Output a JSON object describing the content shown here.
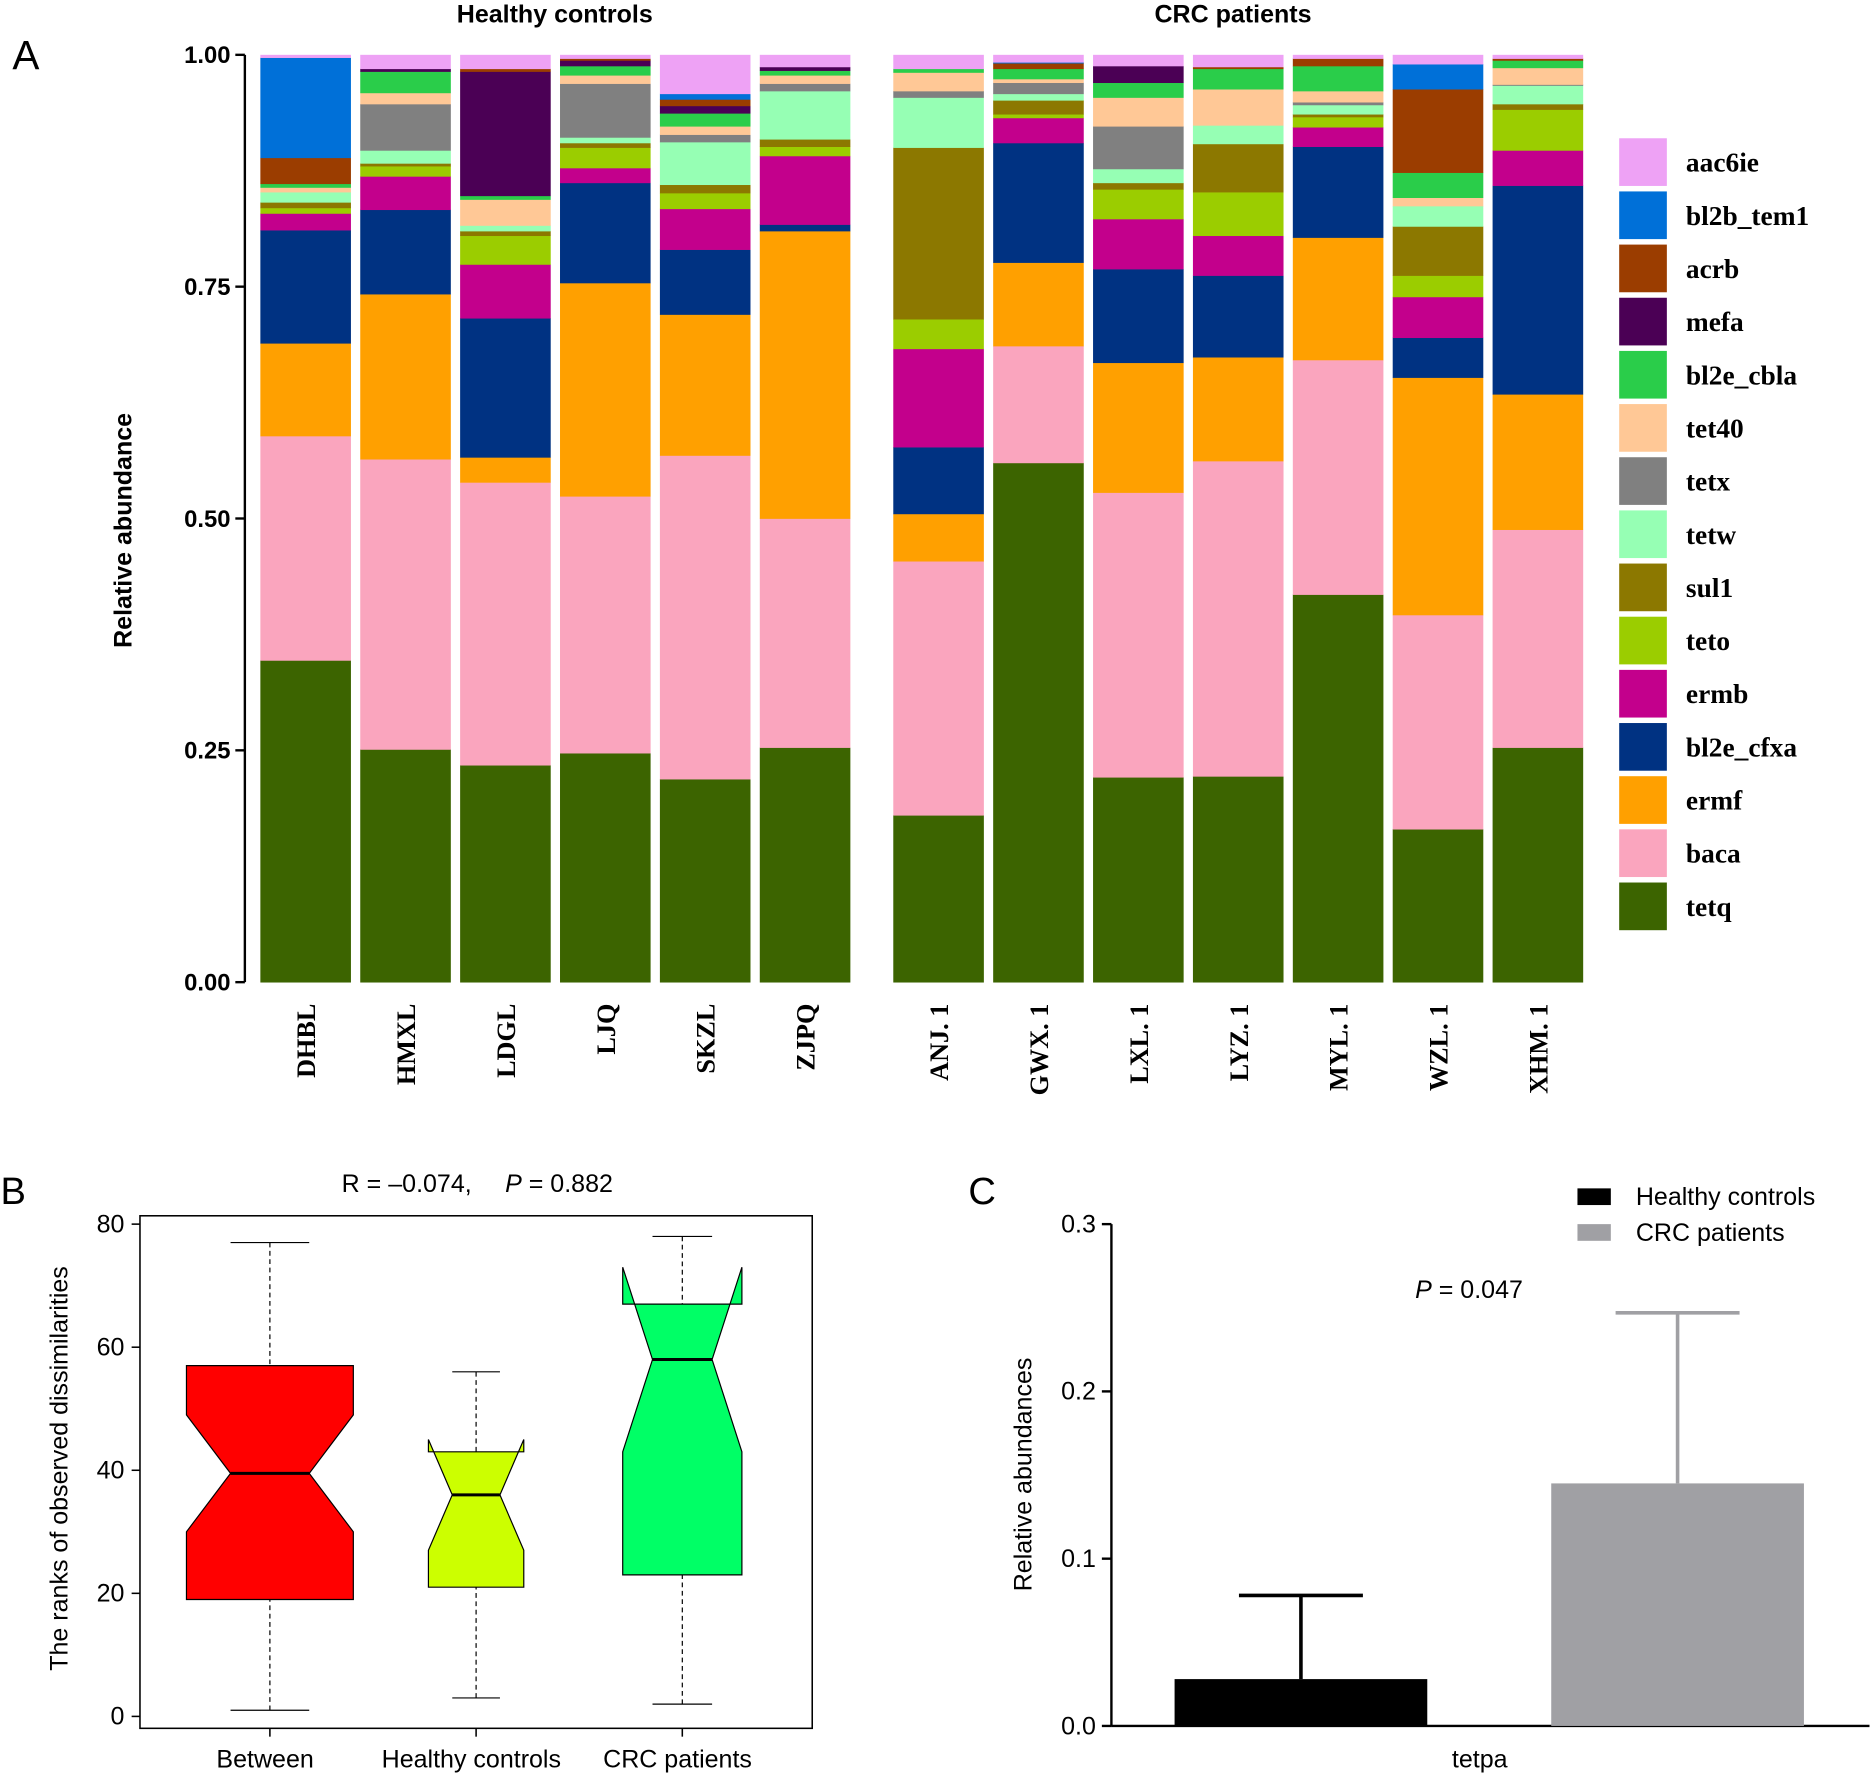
{
  "chart_data": [
    {
      "panel": "A",
      "type": "bar",
      "stacked": true,
      "group_titles": [
        "Healthy controls",
        "CRC patients"
      ],
      "ylabel": "Relative abundance",
      "ylim": [
        0,
        1
      ],
      "yticks": [
        "0.00",
        "0.25",
        "0.50",
        "0.75",
        "1.00"
      ],
      "groups": [
        {
          "title": "Healthy controls",
          "categories": [
            "DHBL",
            "HMXL",
            "LDGL",
            "LJQ",
            "SKZL",
            "ZJPQ"
          ]
        },
        {
          "title": "CRC patients",
          "categories": [
            "ANJ. 1",
            "GWX. 1",
            "LXL. 1",
            "LYZ. 1",
            "MYL. 1",
            "WZL. 1",
            "XHM. 1"
          ]
        }
      ],
      "categories": [
        "DHBL",
        "HMXL",
        "LDGL",
        "LJQ",
        "SKZL",
        "ZJPQ",
        "ANJ. 1",
        "GWX. 1",
        "LXL. 1",
        "LYZ. 1",
        "MYL. 1",
        "WZL. 1",
        "XHM. 1"
      ],
      "legend_position": "right",
      "series": [
        {
          "name": "tetq",
          "color": "#3C6400",
          "values": [
            0.347,
            0.251,
            0.234,
            0.247,
            0.219,
            0.253,
            0.18,
            0.56,
            0.221,
            0.222,
            0.418,
            0.165,
            0.253
          ]
        },
        {
          "name": "baca",
          "color": "#FAA5BE",
          "values": [
            0.242,
            0.313,
            0.305,
            0.277,
            0.349,
            0.247,
            0.274,
            0.126,
            0.307,
            0.34,
            0.253,
            0.231,
            0.235
          ]
        },
        {
          "name": "ermf",
          "color": "#FFA000",
          "values": [
            0.1,
            0.178,
            0.027,
            0.23,
            0.152,
            0.31,
            0.051,
            0.09,
            0.14,
            0.112,
            0.132,
            0.256,
            0.146
          ]
        },
        {
          "name": "bl2e_cfxa",
          "color": "#003282",
          "values": [
            0.122,
            0.091,
            0.15,
            0.108,
            0.07,
            0.007,
            0.072,
            0.129,
            0.101,
            0.088,
            0.098,
            0.043,
            0.225
          ]
        },
        {
          "name": "ermb",
          "color": "#C3008C",
          "values": [
            0.018,
            0.036,
            0.058,
            0.016,
            0.044,
            0.074,
            0.106,
            0.027,
            0.054,
            0.043,
            0.021,
            0.044,
            0.038
          ]
        },
        {
          "name": "teto",
          "color": "#9BCD00",
          "values": [
            0.006,
            0.011,
            0.031,
            0.022,
            0.017,
            0.01,
            0.032,
            0.004,
            0.032,
            0.047,
            0.011,
            0.023,
            0.044
          ]
        },
        {
          "name": "sul1",
          "color": "#8C7800",
          "values": [
            0.006,
            0.003,
            0.005,
            0.005,
            0.009,
            0.008,
            0.185,
            0.015,
            0.007,
            0.052,
            0.003,
            0.053,
            0.006
          ]
        },
        {
          "name": "tetw",
          "color": "#96FFB4",
          "values": [
            0.011,
            0.014,
            0.006,
            0.006,
            0.046,
            0.052,
            0.054,
            0.007,
            0.015,
            0.02,
            0.01,
            0.022,
            0.02
          ]
        },
        {
          "name": "tetx",
          "color": "#808080",
          "values": [
            0.0,
            0.05,
            0.0,
            0.058,
            0.008,
            0.008,
            0.007,
            0.012,
            0.046,
            0.0,
            0.003,
            0.0,
            0.001
          ]
        },
        {
          "name": "tet40",
          "color": "#FFC896",
          "values": [
            0.005,
            0.012,
            0.028,
            0.009,
            0.009,
            0.009,
            0.02,
            0.004,
            0.031,
            0.039,
            0.012,
            0.009,
            0.018
          ]
        },
        {
          "name": "bl2e_cbla",
          "color": "#2ACD4A",
          "values": [
            0.004,
            0.023,
            0.004,
            0.01,
            0.014,
            0.005,
            0.004,
            0.011,
            0.016,
            0.022,
            0.027,
            0.027,
            0.008
          ]
        },
        {
          "name": "mefa",
          "color": "#4B0055",
          "values": [
            0.0,
            0.003,
            0.134,
            0.006,
            0.008,
            0.004,
            0.0,
            0.0,
            0.018,
            0.0,
            0.0,
            0.0,
            0.0
          ]
        },
        {
          "name": "acrb",
          "color": "#9B3D00",
          "values": [
            0.028,
            0.0,
            0.003,
            0.002,
            0.007,
            0.0,
            0.0,
            0.006,
            0.0,
            0.002,
            0.008,
            0.09,
            0.002
          ]
        },
        {
          "name": "bl2b_tem1",
          "color": "#0070D8",
          "values": [
            0.108,
            0.0,
            0.0,
            0.0,
            0.006,
            0.0,
            0.0,
            0.001,
            0.0,
            0.0,
            0.0,
            0.027,
            0.0
          ]
        },
        {
          "name": "aac6ie",
          "color": "#EEA2F5",
          "values": [
            0.003,
            0.015,
            0.015,
            0.004,
            0.042,
            0.013,
            0.015,
            0.008,
            0.012,
            0.013,
            0.004,
            0.01,
            0.004
          ]
        }
      ]
    },
    {
      "panel": "B",
      "type": "boxplot",
      "title_r": "R = –0.074,",
      "title_p_label": "P",
      "title_p_value": " = 0.882",
      "ylabel": "The ranks of observed dissimilarities",
      "ylim": [
        0,
        80
      ],
      "yticks": [
        "0",
        "20",
        "40",
        "60",
        "80"
      ],
      "categories": [
        "Between",
        "Healthy controls",
        "CRC patients"
      ],
      "boxes": [
        {
          "name": "Between",
          "color": "#FF0000",
          "min": 1,
          "q1": 19,
          "median": 39.5,
          "q3": 57,
          "max": 77,
          "notch_low": 30,
          "notch_high": 49
        },
        {
          "name": "Healthy controls",
          "color": "#CCFF00",
          "min": 3,
          "q1": 21,
          "median": 36,
          "q3": 43,
          "max": 56,
          "notch_low": 27,
          "notch_high": 45
        },
        {
          "name": "CRC patients",
          "color": "#00FF66",
          "min": 2,
          "q1": 23,
          "median": 58,
          "q3": 67,
          "max": 78,
          "notch_low": 43,
          "notch_high": 73
        }
      ]
    },
    {
      "panel": "C",
      "type": "bar",
      "ylabel": "Relative abundances",
      "xlabel": "tetpa",
      "ylim": [
        0,
        0.3
      ],
      "yticks": [
        "0.0",
        "0.1",
        "0.2",
        "0.3"
      ],
      "annotation_p_label": "P",
      "annotation_p_value": " = 0.047",
      "legend_position": "top-right",
      "series": [
        {
          "name": "Healthy controls",
          "color": "#000000",
          "value": 0.028,
          "error_upper": 0.078
        },
        {
          "name": "CRC patients",
          "color": "#A0A0A4",
          "value": 0.145,
          "error_upper": 0.247
        }
      ]
    }
  ],
  "panel_letters": [
    "A",
    "B",
    "C"
  ]
}
